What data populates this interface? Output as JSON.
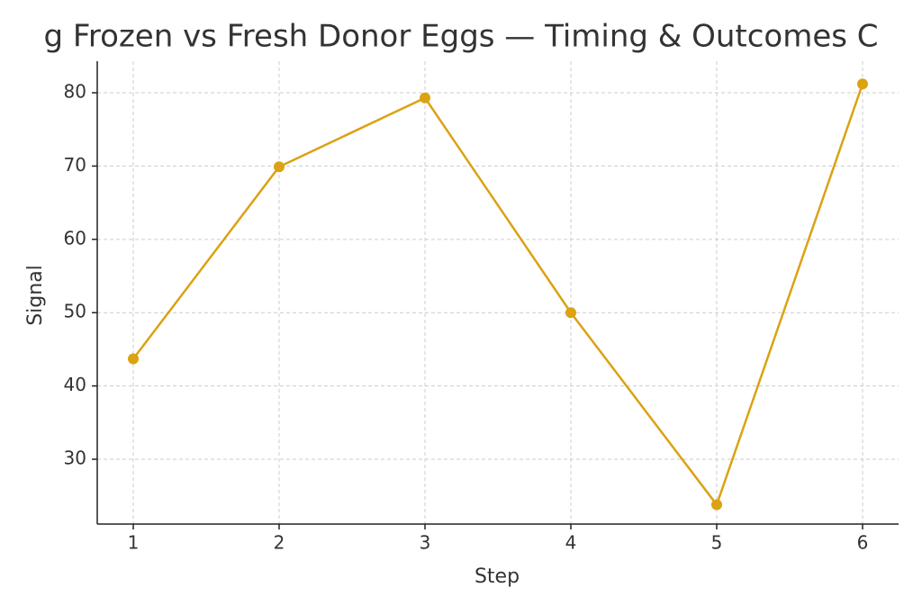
{
  "chart_data": {
    "type": "line",
    "title": "g Frozen vs Fresh Donor Eggs — Timing & Outcomes C",
    "x_label": "Step",
    "y_label": "Signal",
    "x": [
      1,
      2,
      3,
      4,
      5,
      6
    ],
    "series": [
      {
        "name": "Signal",
        "color": "#dba212",
        "values": [
          43.7,
          69.9,
          79.3,
          50.0,
          23.8,
          81.2
        ]
      }
    ],
    "xlim": [
      0.753,
      6.247
    ],
    "ylim": [
      21.16,
      84.3
    ],
    "xticks": [
      1,
      2,
      3,
      4,
      5,
      6
    ],
    "yticks": [
      30,
      40,
      50,
      60,
      70,
      80
    ],
    "grid": true
  }
}
